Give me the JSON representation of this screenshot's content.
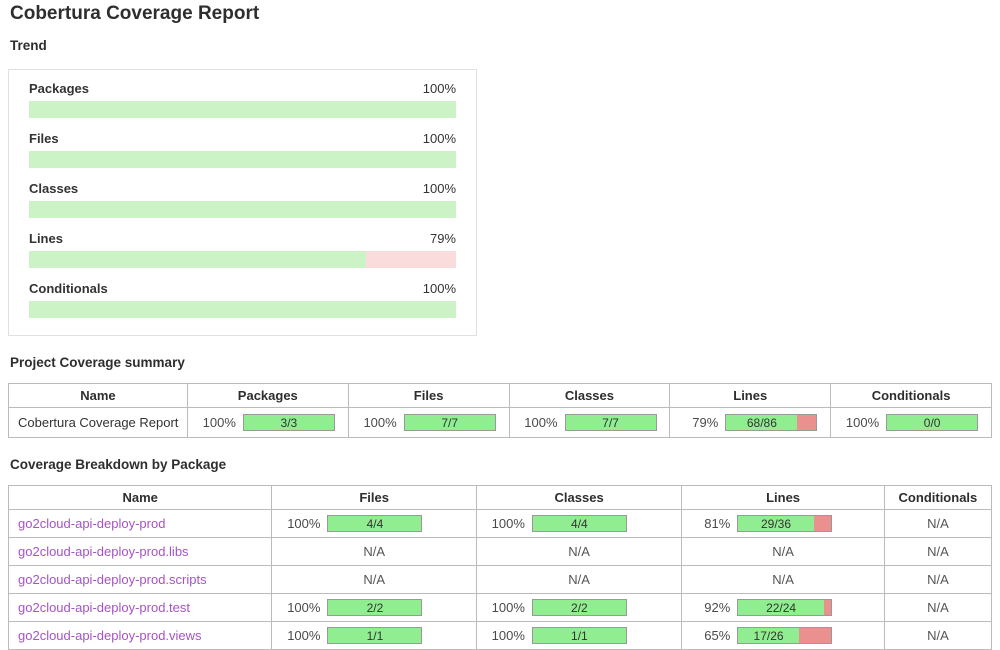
{
  "page": {
    "title": "Cobertura Coverage Report"
  },
  "colors": {
    "bar_green": "#90ee90",
    "bar_red": "#ea918f",
    "trend_green": "#ccf3c5",
    "trend_pink": "#f9dcdb",
    "link_purple": "#a752c7"
  },
  "trend": {
    "heading": "Trend",
    "metrics": [
      {
        "label": "Packages",
        "pct_label": "100%",
        "value": 100
      },
      {
        "label": "Files",
        "pct_label": "100%",
        "value": 100
      },
      {
        "label": "Classes",
        "pct_label": "100%",
        "value": 100
      },
      {
        "label": "Lines",
        "pct_label": "79%",
        "value": 79
      },
      {
        "label": "Conditionals",
        "pct_label": "100%",
        "value": 100
      }
    ]
  },
  "summary": {
    "heading": "Project Coverage summary",
    "columns": [
      "Name",
      "Packages",
      "Files",
      "Classes",
      "Lines",
      "Conditionals"
    ],
    "row": {
      "name": "Cobertura Coverage Report",
      "packages": {
        "pct": "100%",
        "value": 100,
        "ratio": "3/3"
      },
      "files": {
        "pct": "100%",
        "value": 100,
        "ratio": "7/7"
      },
      "classes": {
        "pct": "100%",
        "value": 100,
        "ratio": "7/7"
      },
      "lines": {
        "pct": "79%",
        "value": 79,
        "ratio": "68/86"
      },
      "conditionals": {
        "pct": "100%",
        "value": 100,
        "ratio": "0/0"
      }
    }
  },
  "breakdown": {
    "heading": "Coverage Breakdown by Package",
    "columns": [
      "Name",
      "Files",
      "Classes",
      "Lines",
      "Conditionals"
    ],
    "rows": [
      {
        "name": "go2cloud-api-deploy-prod",
        "files": {
          "pct": "100%",
          "value": 100,
          "ratio": "4/4"
        },
        "classes": {
          "pct": "100%",
          "value": 100,
          "ratio": "4/4"
        },
        "lines": {
          "pct": "81%",
          "value": 81,
          "ratio": "29/36"
        },
        "conditionals": "N/A"
      },
      {
        "name": "go2cloud-api-deploy-prod.libs",
        "files": "N/A",
        "classes": "N/A",
        "lines": "N/A",
        "conditionals": "N/A"
      },
      {
        "name": "go2cloud-api-deploy-prod.scripts",
        "files": "N/A",
        "classes": "N/A",
        "lines": "N/A",
        "conditionals": "N/A"
      },
      {
        "name": "go2cloud-api-deploy-prod.test",
        "files": {
          "pct": "100%",
          "value": 100,
          "ratio": "2/2"
        },
        "classes": {
          "pct": "100%",
          "value": 100,
          "ratio": "2/2"
        },
        "lines": {
          "pct": "92%",
          "value": 92,
          "ratio": "22/24"
        },
        "conditionals": "N/A"
      },
      {
        "name": "go2cloud-api-deploy-prod.views",
        "files": {
          "pct": "100%",
          "value": 100,
          "ratio": "1/1"
        },
        "classes": {
          "pct": "100%",
          "value": 100,
          "ratio": "1/1"
        },
        "lines": {
          "pct": "65%",
          "value": 65,
          "ratio": "17/26"
        },
        "conditionals": "N/A"
      }
    ]
  }
}
